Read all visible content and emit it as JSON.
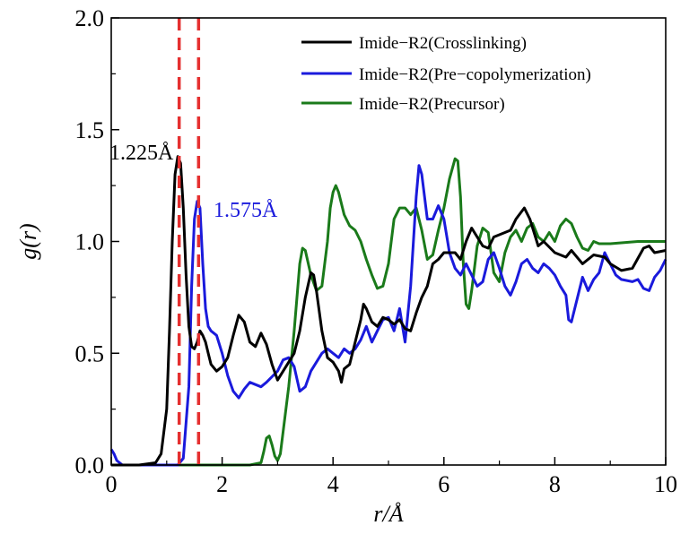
{
  "chart_data": {
    "type": "line",
    "title": "",
    "xlabel": "r/Å",
    "ylabel": "g(r)",
    "xlim": [
      0,
      10
    ],
    "ylim": [
      0,
      2.0
    ],
    "x_ticks": [
      "0",
      "2",
      "4",
      "6",
      "8",
      "10"
    ],
    "y_ticks": [
      "0.0",
      "0.5",
      "1.0",
      "1.5",
      "2.0"
    ],
    "grid": false,
    "legend_position": "top-right",
    "reference_lines": [
      {
        "x": 1.225,
        "color": "#e53030",
        "style": "dashed"
      },
      {
        "x": 1.575,
        "color": "#e53030",
        "style": "dashed"
      }
    ],
    "annotations": [
      {
        "text": "1.225Å",
        "color": "#000000"
      },
      {
        "text": "1.575Å",
        "color": "#1a1adc"
      }
    ],
    "series": [
      {
        "name": "Imide−R2(Crosslinking)",
        "color": "#000000",
        "points": [
          [
            0,
            0
          ],
          [
            0.5,
            0
          ],
          [
            0.8,
            0.01
          ],
          [
            0.9,
            0.05
          ],
          [
            1.0,
            0.25
          ],
          [
            1.05,
            0.6
          ],
          [
            1.1,
            1.0
          ],
          [
            1.15,
            1.3
          ],
          [
            1.2,
            1.38
          ],
          [
            1.25,
            1.35
          ],
          [
            1.3,
            1.15
          ],
          [
            1.35,
            0.85
          ],
          [
            1.4,
            0.62
          ],
          [
            1.45,
            0.53
          ],
          [
            1.5,
            0.52
          ],
          [
            1.55,
            0.55
          ],
          [
            1.6,
            0.6
          ],
          [
            1.65,
            0.58
          ],
          [
            1.7,
            0.55
          ],
          [
            1.75,
            0.5
          ],
          [
            1.8,
            0.45
          ],
          [
            1.9,
            0.42
          ],
          [
            2.0,
            0.44
          ],
          [
            2.1,
            0.48
          ],
          [
            2.2,
            0.58
          ],
          [
            2.3,
            0.67
          ],
          [
            2.4,
            0.64
          ],
          [
            2.5,
            0.55
          ],
          [
            2.6,
            0.53
          ],
          [
            2.7,
            0.59
          ],
          [
            2.8,
            0.54
          ],
          [
            2.9,
            0.45
          ],
          [
            3.0,
            0.38
          ],
          [
            3.1,
            0.42
          ],
          [
            3.2,
            0.46
          ],
          [
            3.3,
            0.5
          ],
          [
            3.4,
            0.6
          ],
          [
            3.5,
            0.75
          ],
          [
            3.6,
            0.86
          ],
          [
            3.65,
            0.85
          ],
          [
            3.7,
            0.78
          ],
          [
            3.8,
            0.6
          ],
          [
            3.9,
            0.48
          ],
          [
            4.0,
            0.46
          ],
          [
            4.1,
            0.42
          ],
          [
            4.15,
            0.37
          ],
          [
            4.2,
            0.43
          ],
          [
            4.3,
            0.45
          ],
          [
            4.4,
            0.55
          ],
          [
            4.5,
            0.65
          ],
          [
            4.55,
            0.72
          ],
          [
            4.6,
            0.7
          ],
          [
            4.7,
            0.64
          ],
          [
            4.8,
            0.62
          ],
          [
            4.9,
            0.66
          ],
          [
            5.0,
            0.65
          ],
          [
            5.1,
            0.63
          ],
          [
            5.2,
            0.65
          ],
          [
            5.3,
            0.61
          ],
          [
            5.4,
            0.6
          ],
          [
            5.5,
            0.68
          ],
          [
            5.6,
            0.75
          ],
          [
            5.7,
            0.8
          ],
          [
            5.8,
            0.9
          ],
          [
            5.9,
            0.92
          ],
          [
            6.0,
            0.95
          ],
          [
            6.2,
            0.95
          ],
          [
            6.3,
            0.92
          ],
          [
            6.4,
            1.0
          ],
          [
            6.5,
            1.06
          ],
          [
            6.6,
            1.02
          ],
          [
            6.7,
            0.98
          ],
          [
            6.8,
            0.97
          ],
          [
            6.9,
            1.02
          ],
          [
            7.0,
            1.03
          ],
          [
            7.2,
            1.05
          ],
          [
            7.3,
            1.1
          ],
          [
            7.45,
            1.15
          ],
          [
            7.55,
            1.1
          ],
          [
            7.7,
            0.98
          ],
          [
            7.8,
            1.0
          ],
          [
            8.0,
            0.95
          ],
          [
            8.2,
            0.93
          ],
          [
            8.3,
            0.96
          ],
          [
            8.5,
            0.9
          ],
          [
            8.7,
            0.94
          ],
          [
            8.9,
            0.93
          ],
          [
            9.0,
            0.9
          ],
          [
            9.2,
            0.87
          ],
          [
            9.4,
            0.88
          ],
          [
            9.6,
            0.97
          ],
          [
            9.7,
            0.98
          ],
          [
            9.8,
            0.95
          ],
          [
            10.0,
            0.96
          ]
        ]
      },
      {
        "name": "Imide−R2(Pre−copolymerization)",
        "color": "#1a1adc",
        "points": [
          [
            0,
            0.07
          ],
          [
            0.05,
            0.05
          ],
          [
            0.1,
            0.02
          ],
          [
            0.2,
            0
          ],
          [
            0.5,
            0
          ],
          [
            1.2,
            0
          ],
          [
            1.3,
            0.03
          ],
          [
            1.4,
            0.35
          ],
          [
            1.45,
            0.8
          ],
          [
            1.5,
            1.1
          ],
          [
            1.55,
            1.18
          ],
          [
            1.6,
            1.15
          ],
          [
            1.65,
            0.9
          ],
          [
            1.7,
            0.7
          ],
          [
            1.75,
            0.62
          ],
          [
            1.8,
            0.6
          ],
          [
            1.9,
            0.58
          ],
          [
            2.0,
            0.5
          ],
          [
            2.1,
            0.4
          ],
          [
            2.2,
            0.33
          ],
          [
            2.3,
            0.3
          ],
          [
            2.4,
            0.34
          ],
          [
            2.5,
            0.37
          ],
          [
            2.6,
            0.36
          ],
          [
            2.7,
            0.35
          ],
          [
            2.8,
            0.37
          ],
          [
            3.0,
            0.42
          ],
          [
            3.1,
            0.47
          ],
          [
            3.2,
            0.48
          ],
          [
            3.3,
            0.44
          ],
          [
            3.4,
            0.33
          ],
          [
            3.5,
            0.35
          ],
          [
            3.6,
            0.42
          ],
          [
            3.7,
            0.46
          ],
          [
            3.8,
            0.5
          ],
          [
            3.9,
            0.52
          ],
          [
            4.0,
            0.5
          ],
          [
            4.1,
            0.48
          ],
          [
            4.2,
            0.52
          ],
          [
            4.3,
            0.5
          ],
          [
            4.4,
            0.52
          ],
          [
            4.5,
            0.56
          ],
          [
            4.6,
            0.62
          ],
          [
            4.7,
            0.55
          ],
          [
            4.8,
            0.6
          ],
          [
            4.9,
            0.65
          ],
          [
            5.0,
            0.66
          ],
          [
            5.1,
            0.6
          ],
          [
            5.2,
            0.7
          ],
          [
            5.3,
            0.55
          ],
          [
            5.4,
            0.8
          ],
          [
            5.5,
            1.2
          ],
          [
            5.55,
            1.34
          ],
          [
            5.6,
            1.3
          ],
          [
            5.7,
            1.1
          ],
          [
            5.8,
            1.1
          ],
          [
            5.9,
            1.16
          ],
          [
            6.0,
            1.1
          ],
          [
            6.1,
            0.95
          ],
          [
            6.2,
            0.88
          ],
          [
            6.3,
            0.85
          ],
          [
            6.4,
            0.9
          ],
          [
            6.5,
            0.85
          ],
          [
            6.6,
            0.8
          ],
          [
            6.7,
            0.82
          ],
          [
            6.8,
            0.92
          ],
          [
            6.9,
            0.95
          ],
          [
            7.0,
            0.88
          ],
          [
            7.1,
            0.8
          ],
          [
            7.2,
            0.76
          ],
          [
            7.3,
            0.82
          ],
          [
            7.4,
            0.9
          ],
          [
            7.5,
            0.92
          ],
          [
            7.6,
            0.88
          ],
          [
            7.7,
            0.86
          ],
          [
            7.8,
            0.9
          ],
          [
            7.9,
            0.88
          ],
          [
            8.0,
            0.85
          ],
          [
            8.1,
            0.8
          ],
          [
            8.2,
            0.76
          ],
          [
            8.25,
            0.65
          ],
          [
            8.3,
            0.64
          ],
          [
            8.4,
            0.74
          ],
          [
            8.5,
            0.84
          ],
          [
            8.6,
            0.78
          ],
          [
            8.7,
            0.83
          ],
          [
            8.8,
            0.86
          ],
          [
            8.9,
            0.95
          ],
          [
            9.0,
            0.9
          ],
          [
            9.1,
            0.85
          ],
          [
            9.2,
            0.83
          ],
          [
            9.4,
            0.82
          ],
          [
            9.5,
            0.83
          ],
          [
            9.6,
            0.79
          ],
          [
            9.7,
            0.78
          ],
          [
            9.8,
            0.84
          ],
          [
            9.9,
            0.87
          ],
          [
            10.0,
            0.92
          ]
        ]
      },
      {
        "name": "Imide−R2(Precursor)",
        "color": "#1a7a1a",
        "points": [
          [
            0,
            0
          ],
          [
            2.5,
            0
          ],
          [
            2.7,
            0.01
          ],
          [
            2.75,
            0.06
          ],
          [
            2.8,
            0.12
          ],
          [
            2.85,
            0.13
          ],
          [
            2.9,
            0.09
          ],
          [
            2.95,
            0.04
          ],
          [
            3.0,
            0.02
          ],
          [
            3.05,
            0.05
          ],
          [
            3.1,
            0.15
          ],
          [
            3.2,
            0.35
          ],
          [
            3.3,
            0.6
          ],
          [
            3.4,
            0.9
          ],
          [
            3.45,
            0.97
          ],
          [
            3.5,
            0.96
          ],
          [
            3.6,
            0.85
          ],
          [
            3.7,
            0.78
          ],
          [
            3.8,
            0.8
          ],
          [
            3.9,
            1.0
          ],
          [
            3.95,
            1.15
          ],
          [
            4.0,
            1.22
          ],
          [
            4.05,
            1.25
          ],
          [
            4.1,
            1.22
          ],
          [
            4.2,
            1.12
          ],
          [
            4.3,
            1.07
          ],
          [
            4.4,
            1.05
          ],
          [
            4.5,
            1.0
          ],
          [
            4.6,
            0.92
          ],
          [
            4.7,
            0.85
          ],
          [
            4.8,
            0.79
          ],
          [
            4.9,
            0.8
          ],
          [
            5.0,
            0.9
          ],
          [
            5.1,
            1.1
          ],
          [
            5.2,
            1.15
          ],
          [
            5.3,
            1.15
          ],
          [
            5.4,
            1.12
          ],
          [
            5.5,
            1.15
          ],
          [
            5.6,
            1.05
          ],
          [
            5.7,
            0.92
          ],
          [
            5.8,
            0.94
          ],
          [
            5.9,
            1.05
          ],
          [
            6.0,
            1.15
          ],
          [
            6.1,
            1.28
          ],
          [
            6.2,
            1.37
          ],
          [
            6.25,
            1.36
          ],
          [
            6.3,
            1.2
          ],
          [
            6.35,
            0.9
          ],
          [
            6.4,
            0.72
          ],
          [
            6.45,
            0.7
          ],
          [
            6.5,
            0.78
          ],
          [
            6.6,
            0.98
          ],
          [
            6.7,
            1.06
          ],
          [
            6.8,
            1.04
          ],
          [
            6.9,
            0.86
          ],
          [
            7.0,
            0.82
          ],
          [
            7.1,
            0.95
          ],
          [
            7.2,
            1.02
          ],
          [
            7.3,
            1.05
          ],
          [
            7.4,
            1.0
          ],
          [
            7.5,
            1.06
          ],
          [
            7.6,
            1.08
          ],
          [
            7.7,
            1.02
          ],
          [
            7.8,
            1.0
          ],
          [
            7.9,
            1.04
          ],
          [
            8.0,
            1.0
          ],
          [
            8.1,
            1.07
          ],
          [
            8.2,
            1.1
          ],
          [
            8.3,
            1.08
          ],
          [
            8.4,
            1.02
          ],
          [
            8.5,
            0.97
          ],
          [
            8.6,
            0.96
          ],
          [
            8.7,
            1.0
          ],
          [
            8.8,
            0.99
          ],
          [
            9.0,
            0.99
          ],
          [
            9.5,
            1.0
          ],
          [
            10.0,
            1.0
          ]
        ]
      }
    ]
  }
}
